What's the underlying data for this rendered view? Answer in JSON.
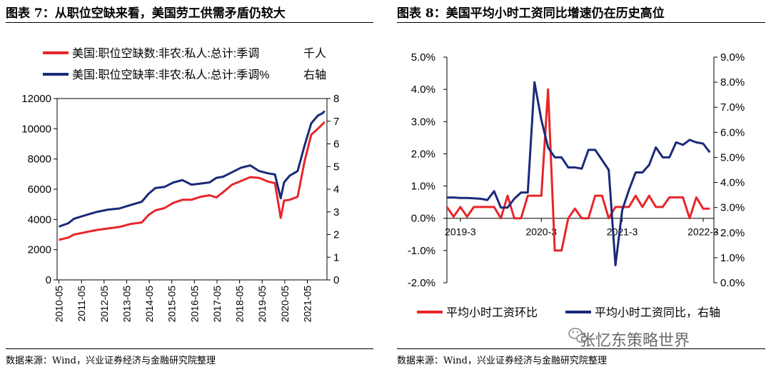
{
  "left_figure": {
    "title": "图表 7：从职位空缺来看，美国劳工供需矛盾仍较大",
    "source": "数据来源：Wind，兴业证券经济与金融研究院整理"
  },
  "right_figure": {
    "title": "图表 8：美国平均小时工资同比增速仍在历史高位",
    "source": "数据来源：Wind，兴业证券经济与金融研究院整理"
  },
  "watermark": {
    "text": "张忆东策略世界",
    "icon": "wechat-icon"
  },
  "chart_data": [
    {
      "type": "line",
      "title": "",
      "x_tick_labels": [
        "2010-05",
        "2011-05",
        "2012-05",
        "2013-05",
        "2014-05",
        "2015-05",
        "2016-05",
        "2017-05",
        "2018-05",
        "2019-05",
        "2020-05",
        "2021-05"
      ],
      "x_range": [
        2010.25,
        2022.2
      ],
      "y_left": {
        "range": [
          0,
          12000
        ],
        "ticks": [
          "0",
          "2000",
          "4000",
          "6000",
          "8000",
          "10000",
          "12000"
        ]
      },
      "y_right": {
        "range": [
          0,
          8
        ],
        "ticks": [
          "0",
          "1",
          "2",
          "3",
          "4",
          "5",
          "6",
          "7",
          "8"
        ]
      },
      "legend_position": "top-left",
      "series": [
        {
          "name": "美国:职位空缺数:非农:私人:总计:季调",
          "unit_label": "千人",
          "axis": "left",
          "color": "#e8262a",
          "x": [
            2010.33,
            2010.75,
            2011.0,
            2011.5,
            2012.0,
            2012.5,
            2013.0,
            2013.5,
            2014.0,
            2014.3,
            2014.6,
            2015.0,
            2015.4,
            2015.8,
            2016.2,
            2016.6,
            2017.0,
            2017.3,
            2017.6,
            2018.0,
            2018.4,
            2018.8,
            2019.2,
            2019.6,
            2019.9,
            2020.15,
            2020.3,
            2020.55,
            2020.9,
            2021.2,
            2021.5,
            2021.8,
            2022.0,
            2022.1
          ],
          "y": [
            2650,
            2800,
            3000,
            3150,
            3300,
            3400,
            3500,
            3700,
            3800,
            4300,
            4600,
            4750,
            5100,
            5300,
            5300,
            5500,
            5600,
            5450,
            5800,
            6300,
            6550,
            6800,
            6750,
            6500,
            6400,
            4100,
            5250,
            5300,
            5500,
            7800,
            9600,
            10000,
            10300,
            10450
          ]
        },
        {
          "name": "美国:职位空缺率:非农:私人:总计:季调%",
          "unit_label": "右轴",
          "axis": "right",
          "color": "#1b2a78",
          "x": [
            2010.33,
            2010.75,
            2011.0,
            2011.5,
            2012.0,
            2012.5,
            2013.0,
            2013.5,
            2014.0,
            2014.3,
            2014.6,
            2015.0,
            2015.4,
            2015.8,
            2016.2,
            2016.6,
            2017.0,
            2017.3,
            2017.6,
            2018.0,
            2018.4,
            2018.8,
            2019.2,
            2019.6,
            2019.9,
            2020.15,
            2020.3,
            2020.55,
            2020.9,
            2021.2,
            2021.5,
            2021.8,
            2022.0,
            2022.1
          ],
          "y": [
            2.35,
            2.5,
            2.7,
            2.85,
            3.0,
            3.1,
            3.15,
            3.3,
            3.45,
            3.8,
            4.05,
            4.1,
            4.3,
            4.4,
            4.2,
            4.25,
            4.3,
            4.5,
            4.55,
            4.75,
            4.95,
            5.05,
            4.8,
            4.7,
            4.65,
            3.6,
            4.3,
            4.6,
            4.8,
            5.9,
            6.9,
            7.25,
            7.35,
            7.45
          ]
        }
      ]
    },
    {
      "type": "line",
      "title": "",
      "x_tick_labels": [
        "2019-3",
        "2020-3",
        "2021-3",
        "2022-3"
      ],
      "x_range": [
        2019.0,
        2022.3
      ],
      "y_left": {
        "range": [
          -2.0,
          5.0
        ],
        "ticks": [
          "-2.0%",
          "-1.0%",
          "0.0%",
          "1.0%",
          "2.0%",
          "3.0%",
          "4.0%",
          "5.0%"
        ]
      },
      "y_right": {
        "range": [
          0.0,
          9.0
        ],
        "ticks": [
          "0.0%",
          "1.0%",
          "2.0%",
          "3.0%",
          "4.0%",
          "5.0%",
          "6.0%",
          "7.0%",
          "8.0%",
          "9.0%"
        ]
      },
      "legend_position": "bottom",
      "series": [
        {
          "name": "平均小时工资环比",
          "axis": "left",
          "color": "#e8262a",
          "x": [
            2019.0,
            2019.083,
            2019.167,
            2019.25,
            2019.333,
            2019.417,
            2019.5,
            2019.583,
            2019.667,
            2019.75,
            2019.833,
            2019.917,
            2020.0,
            2020.083,
            2020.167,
            2020.25,
            2020.333,
            2020.417,
            2020.5,
            2020.583,
            2020.667,
            2020.75,
            2020.833,
            2020.917,
            2021.0,
            2021.083,
            2021.167,
            2021.25,
            2021.333,
            2021.417,
            2021.5,
            2021.583,
            2021.667,
            2021.75,
            2021.833,
            2021.917,
            2022.0,
            2022.083,
            2022.167,
            2022.25
          ],
          "y": [
            0.35,
            0.05,
            0.35,
            0.05,
            0.35,
            0.35,
            0.35,
            0.35,
            0.0,
            0.7,
            0.0,
            0.0,
            0.7,
            0.7,
            0.7,
            4.0,
            -1.0,
            -1.0,
            0.0,
            0.3,
            0.0,
            0.0,
            0.7,
            0.7,
            0.0,
            0.35,
            0.35,
            0.35,
            0.7,
            0.35,
            0.7,
            0.35,
            0.35,
            0.65,
            0.65,
            0.65,
            0.0,
            0.65,
            0.3,
            0.3
          ]
        },
        {
          "name": "平均小时工资同比，右轴",
          "axis": "right",
          "color": "#1b2a78",
          "x": [
            2019.0,
            2019.083,
            2019.167,
            2019.25,
            2019.333,
            2019.417,
            2019.5,
            2019.583,
            2019.667,
            2019.75,
            2019.833,
            2019.917,
            2020.0,
            2020.083,
            2020.167,
            2020.25,
            2020.333,
            2020.417,
            2020.5,
            2020.583,
            2020.667,
            2020.75,
            2020.833,
            2020.917,
            2021.0,
            2021.083,
            2021.167,
            2021.25,
            2021.333,
            2021.417,
            2021.5,
            2021.583,
            2021.667,
            2021.75,
            2021.833,
            2021.917,
            2022.0,
            2022.083,
            2022.167,
            2022.25
          ],
          "y": [
            3.4,
            3.4,
            3.38,
            3.38,
            3.37,
            3.35,
            3.3,
            3.65,
            3.0,
            3.0,
            3.35,
            3.6,
            3.6,
            8.0,
            6.5,
            5.4,
            5.0,
            5.0,
            4.6,
            4.6,
            4.55,
            5.3,
            5.3,
            4.9,
            4.5,
            0.7,
            2.9,
            3.7,
            4.4,
            4.4,
            4.7,
            5.4,
            5.0,
            5.0,
            5.6,
            5.5,
            5.7,
            5.6,
            5.55,
            5.2
          ]
        }
      ]
    }
  ]
}
